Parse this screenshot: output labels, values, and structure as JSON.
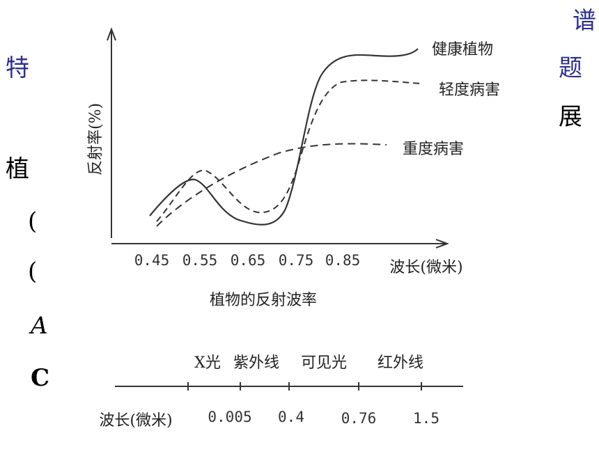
{
  "slide_fragments": [
    "谱",
    "特",
    "题",
    "展",
    "植",
    "(",
    "(",
    "A",
    "C"
  ],
  "figure": {
    "y_axis_label": "反射率(%)",
    "x_ticks": [
      "0.45",
      "0.55",
      "0.65",
      "0.75",
      "0.85"
    ],
    "x_axis_label": "波长(微米)",
    "curves": [
      "健康植物",
      "轻度病害",
      "重度病害"
    ],
    "caption": "植物的反射波率",
    "spectrum": {
      "bands": [
        "X光",
        "紫外线",
        "可见光",
        "红外线"
      ],
      "axis_label": "波长(微米)",
      "ticks": [
        "0.005",
        "0.4",
        "0.76",
        "1.5"
      ]
    }
  }
}
